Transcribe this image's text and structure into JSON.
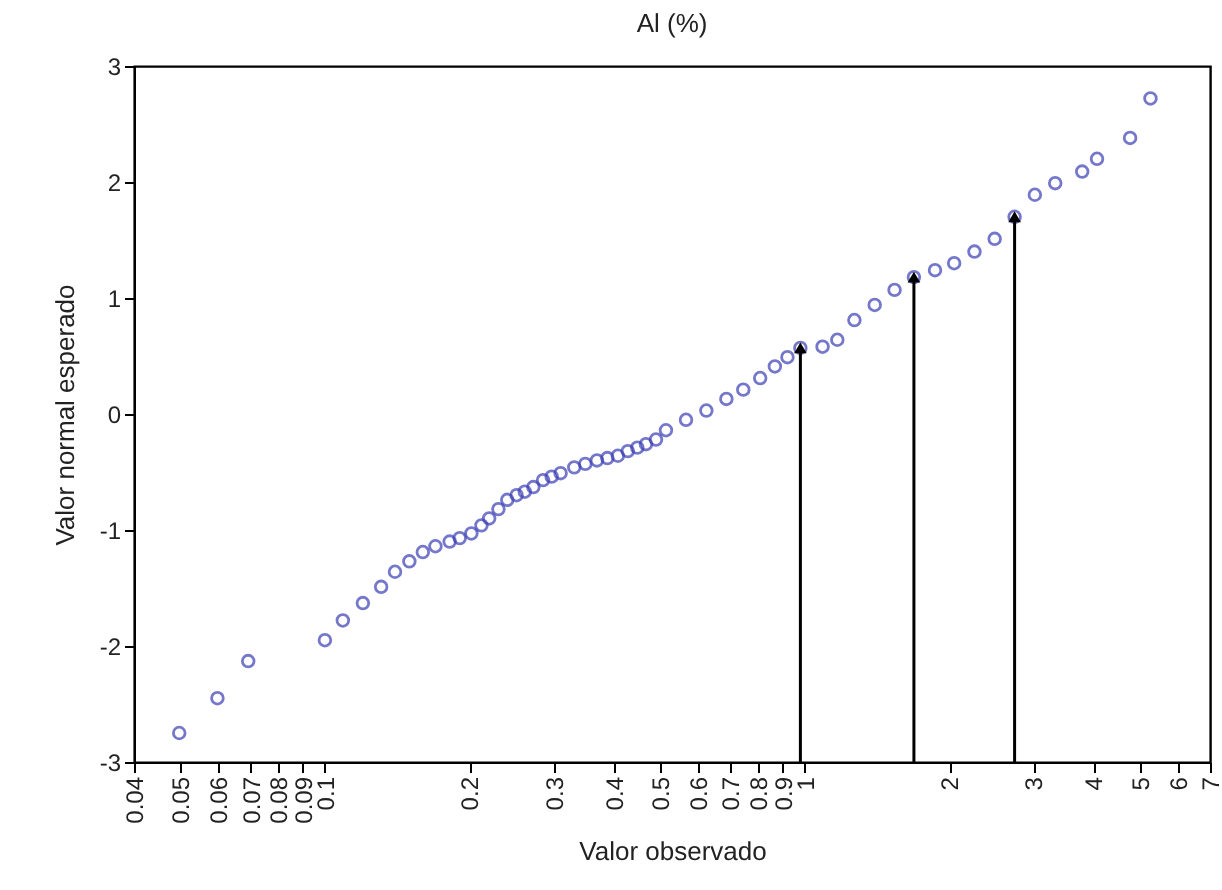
{
  "chart_data": {
    "type": "scatter",
    "title": "Al (%)",
    "xlabel": "Valor observado",
    "ylabel": "Valor normal esperado",
    "log": "x",
    "marker": "circle",
    "grid": false,
    "xlim": [
      0.04,
      7
    ],
    "ylim": [
      -3,
      3
    ],
    "xticks": [
      0.04,
      0.05,
      0.06,
      0.07,
      0.08,
      0.09,
      0.1,
      0.2,
      0.3,
      0.4,
      0.5,
      0.6,
      0.7,
      0.8,
      0.9,
      1,
      2,
      3,
      4,
      5,
      6,
      7
    ],
    "yticks": [
      -3,
      -2,
      -1,
      0,
      1,
      2,
      3
    ],
    "x": [
      0.0497,
      0.0597,
      0.0692,
      0.1,
      0.109,
      0.12,
      0.131,
      0.14,
      0.15,
      0.16,
      0.17,
      0.182,
      0.191,
      0.202,
      0.212,
      0.22,
      0.23,
      0.24,
      0.251,
      0.261,
      0.272,
      0.285,
      0.297,
      0.31,
      0.331,
      0.349,
      0.369,
      0.388,
      0.408,
      0.428,
      0.448,
      0.467,
      0.49,
      0.514,
      0.566,
      0.624,
      0.687,
      0.745,
      0.808,
      0.867,
      0.921,
      0.98,
      1.09,
      1.17,
      1.27,
      1.4,
      1.54,
      1.69,
      1.87,
      2.05,
      2.26,
      2.49,
      2.74,
      3.02,
      3.33,
      3.79,
      4.07,
      4.77,
      5.26
    ],
    "series": [
      {
        "color": "#3b3fb5",
        "values": [
          -2.75,
          -2.45,
          -2.13,
          -1.95,
          -1.78,
          -1.63,
          -1.49,
          -1.36,
          -1.27,
          -1.19,
          -1.14,
          -1.1,
          -1.07,
          -1.03,
          -0.96,
          -0.9,
          -0.82,
          -0.74,
          -0.7,
          -0.67,
          -0.63,
          -0.57,
          -0.54,
          -0.51,
          -0.46,
          -0.43,
          -0.4,
          -0.38,
          -0.36,
          -0.32,
          -0.29,
          -0.26,
          -0.22,
          -0.14,
          -0.05,
          0.03,
          0.13,
          0.21,
          0.31,
          0.41,
          0.49,
          0.57,
          0.58,
          0.64,
          0.81,
          0.94,
          1.07,
          1.18,
          1.24,
          1.3,
          1.4,
          1.51,
          1.7,
          1.89,
          1.99,
          2.09,
          2.2,
          2.38,
          2.72
        ]
      }
    ],
    "ref_lines": [
      {
        "axis": "x",
        "value": 0.98,
        "color": "#000000"
      },
      {
        "axis": "x",
        "value": 1.69,
        "color": "#000000"
      },
      {
        "axis": "x",
        "value": 2.74,
        "color": "#000000"
      }
    ]
  }
}
